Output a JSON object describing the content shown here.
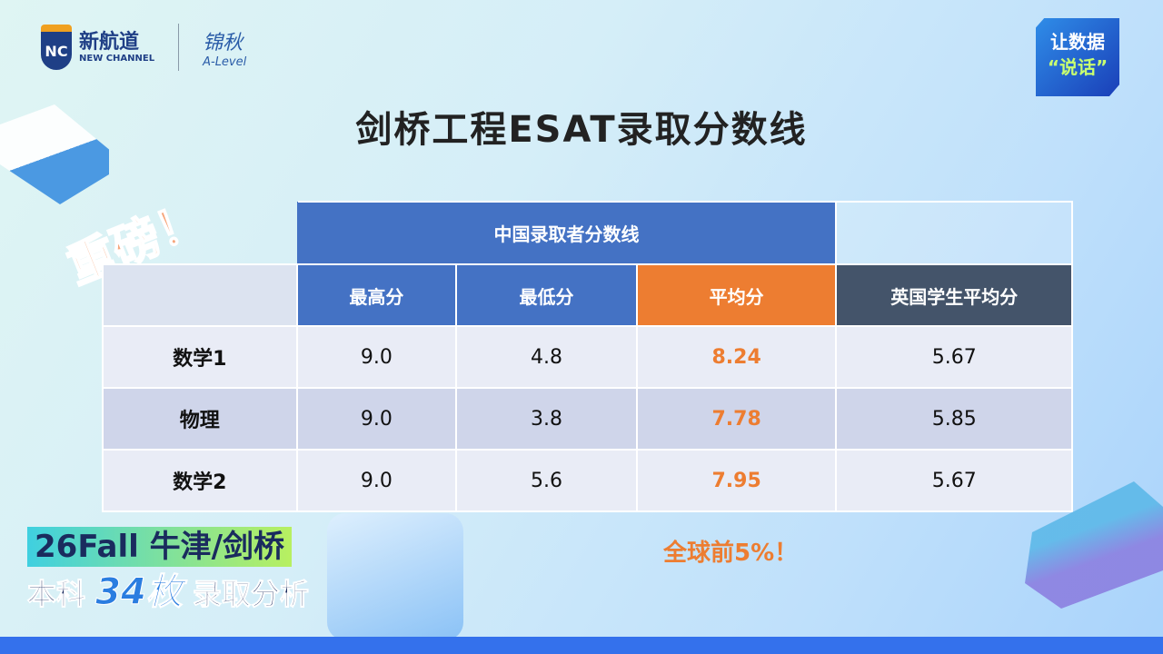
{
  "logo": {
    "brand_cn": "新航道",
    "brand_en": "NEW CHANNEL",
    "mark": "NC",
    "partner_cn": "锦秋",
    "partner_en": "A-Level"
  },
  "badge": {
    "line1": "让数据",
    "line2": "“说话”"
  },
  "title": "剑桥工程ESAT录取分数线",
  "sticker": "重磅！",
  "table": {
    "group_header": "中国录取者分数线",
    "columns": [
      "最高分",
      "最低分",
      "平均分",
      "英国学生平均分"
    ],
    "rows": [
      {
        "subject": "数学1",
        "max": "9.0",
        "min": "4.8",
        "avg": "8.24",
        "uk_avg": "5.67"
      },
      {
        "subject": "物理",
        "max": "9.0",
        "min": "3.8",
        "avg": "7.78",
        "uk_avg": "5.85"
      },
      {
        "subject": "数学2",
        "max": "9.0",
        "min": "5.6",
        "avg": "7.95",
        "uk_avg": "5.67"
      }
    ]
  },
  "note": "全球前5%！",
  "promo": {
    "line1": "26Fall 牛津/剑桥",
    "line2_a": "本科",
    "line2_num": "34枚",
    "line2_b": "录取分析"
  },
  "colors": {
    "header_blue": "#4472c4",
    "avg_orange": "#ed7d31",
    "uk_dark": "#44546a"
  }
}
